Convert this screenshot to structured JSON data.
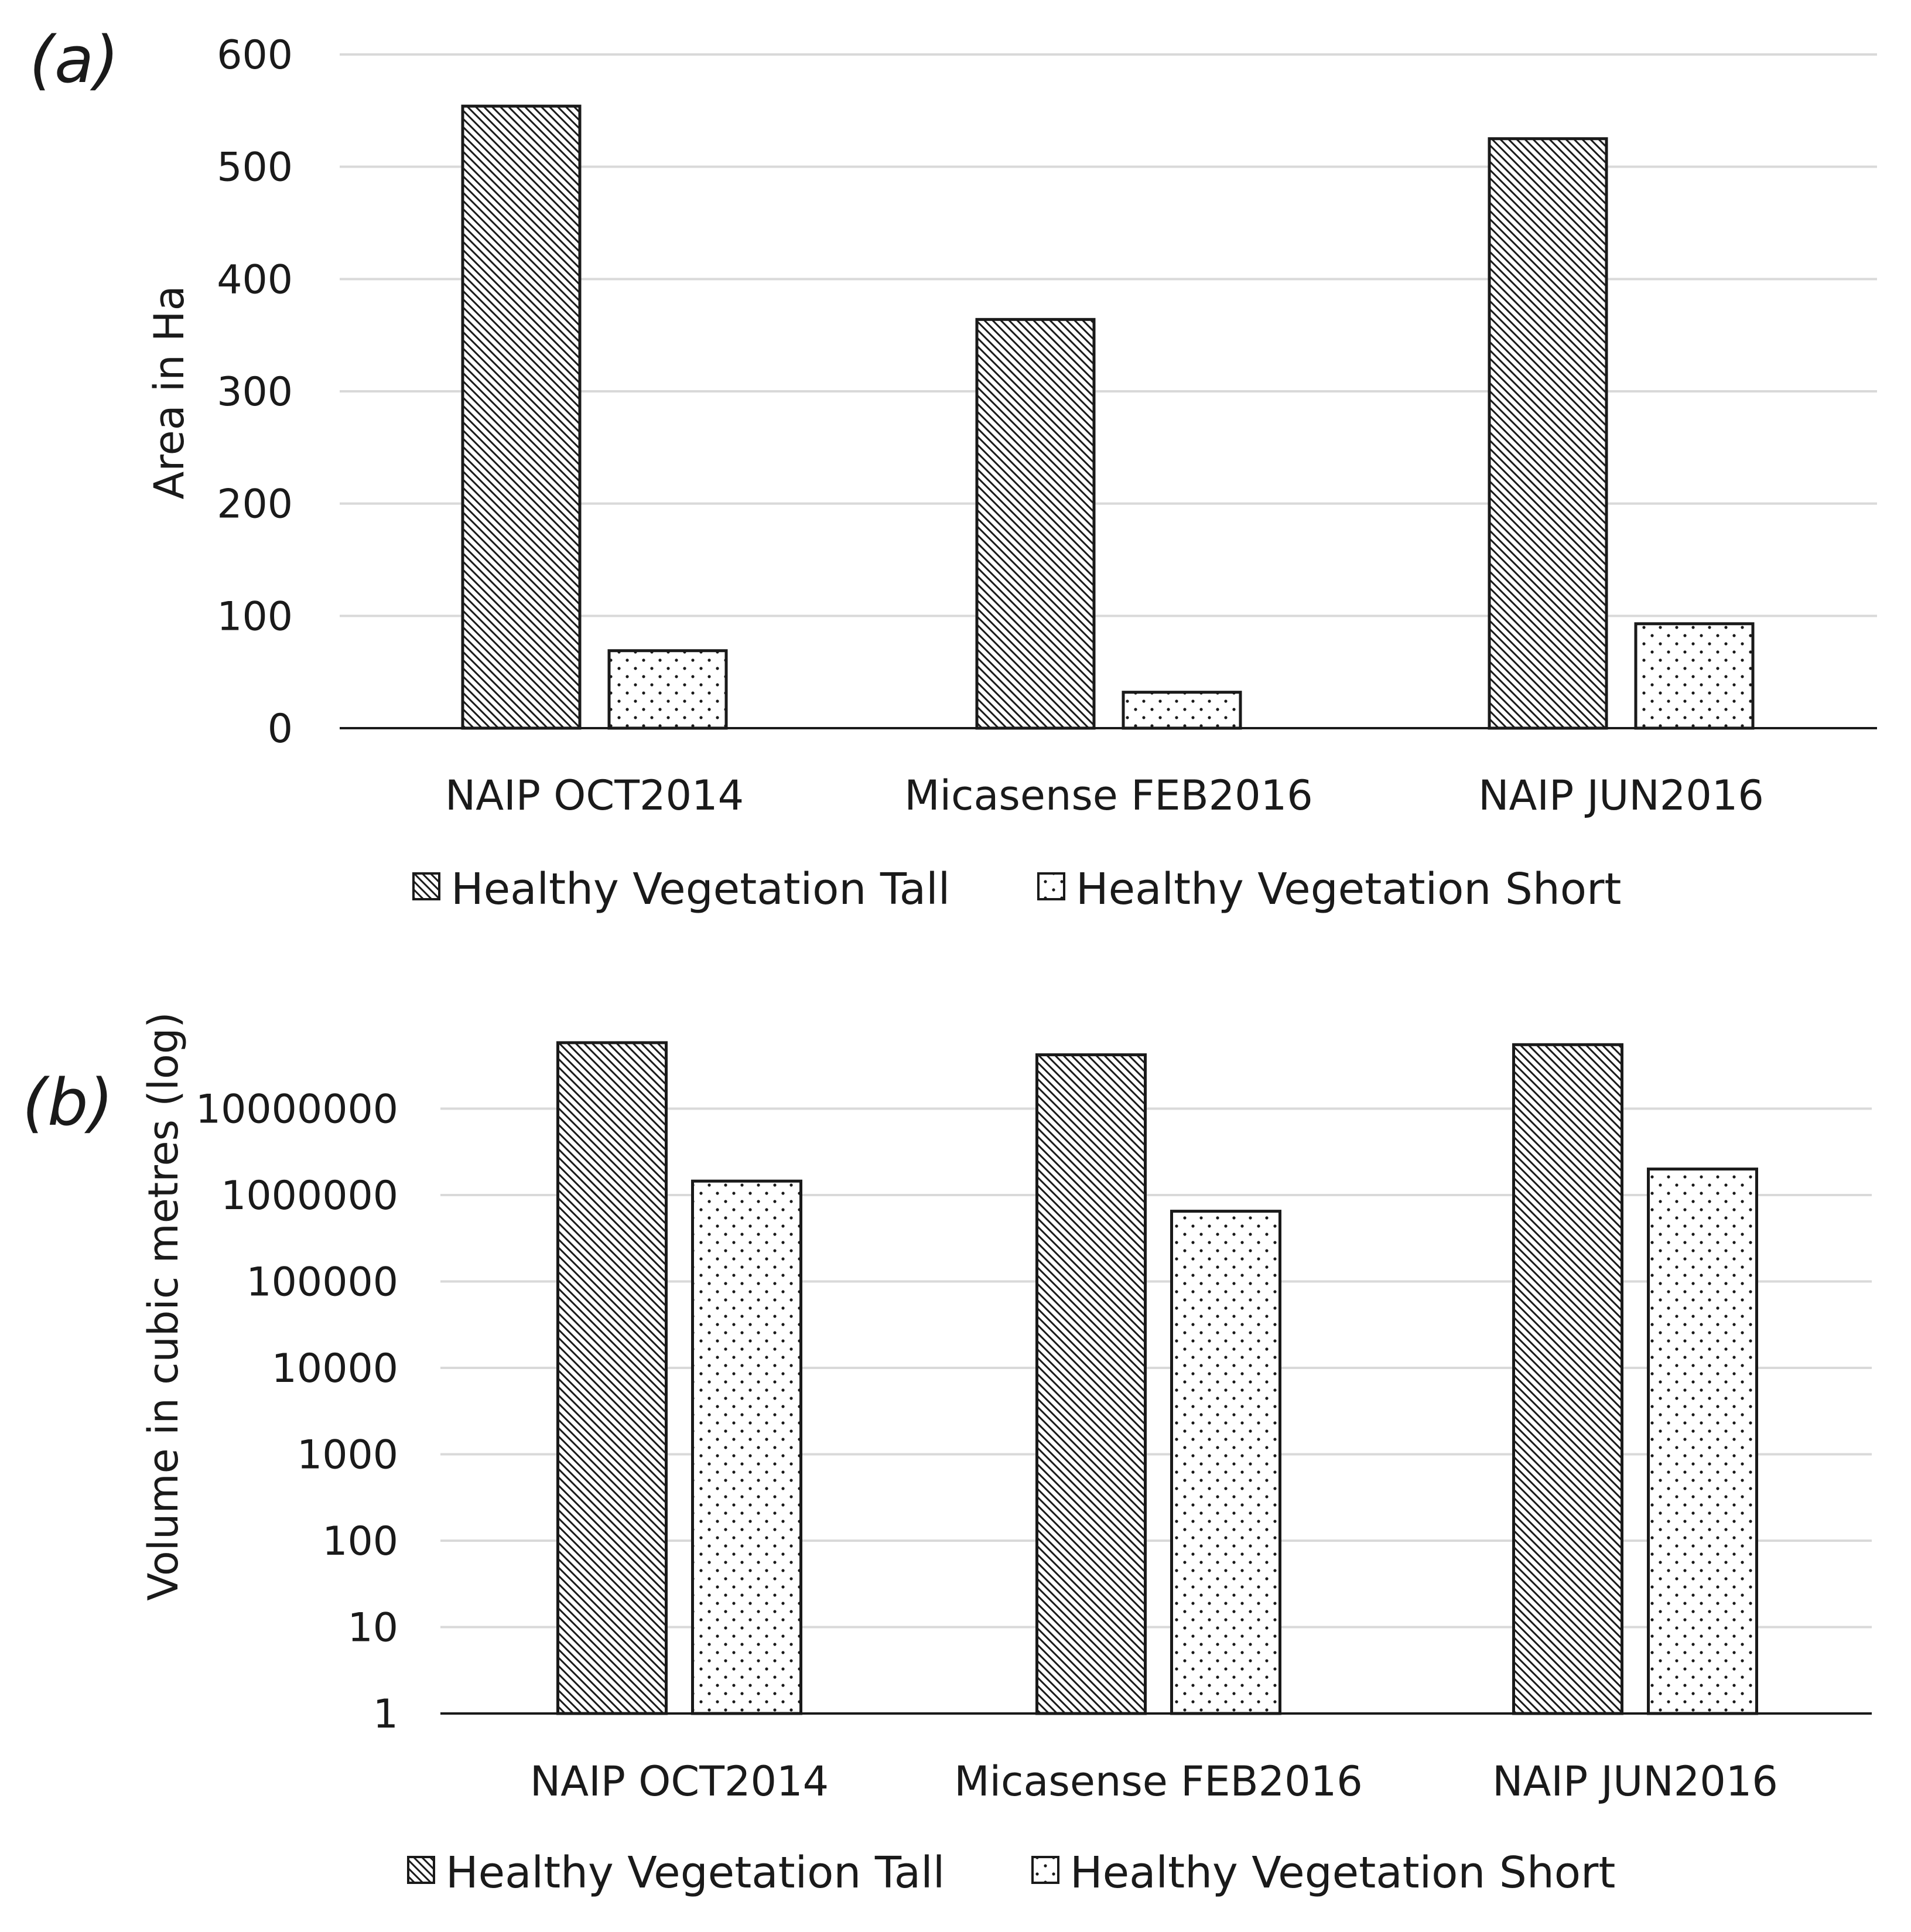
{
  "chart_data": [
    {
      "panel_label": "(a)",
      "type": "bar",
      "scale": "linear",
      "categories": [
        "NAIP OCT2014",
        "Micasense FEB2016",
        "NAIP JUN2016"
      ],
      "series": [
        {
          "name": "Healthy Vegetation Tall",
          "pattern": "diagonal-hatch",
          "values": [
            554,
            364,
            525
          ]
        },
        {
          "name": "Healthy Vegetation Short",
          "pattern": "dots",
          "values": [
            69,
            32,
            93
          ]
        }
      ],
      "ylabel": "Area in Ha",
      "ylim": [
        0,
        600
      ],
      "yticks": [
        "0",
        "100",
        "200",
        "300",
        "400",
        "500",
        "600"
      ],
      "grid": true,
      "legend": "bottom"
    },
    {
      "panel_label": "(b)",
      "type": "bar",
      "scale": "log",
      "categories": [
        "NAIP OCT2014",
        "Micasense FEB2016",
        "NAIP JUN2016"
      ],
      "series": [
        {
          "name": "Healthy Vegetation Tall",
          "pattern": "diagonal-hatch",
          "values": [
            58000000,
            42000000,
            55000000
          ]
        },
        {
          "name": "Healthy Vegetation Short",
          "pattern": "dots",
          "values": [
            1450000,
            650000,
            2000000
          ]
        }
      ],
      "ylabel": "Volume in cubic metres (log)",
      "ylim": [
        1,
        100000000
      ],
      "yticks": [
        "1",
        "10",
        "100",
        "1000",
        "10000",
        "100000",
        "1000000",
        "10000000"
      ],
      "grid": true,
      "legend": "bottom"
    }
  ]
}
